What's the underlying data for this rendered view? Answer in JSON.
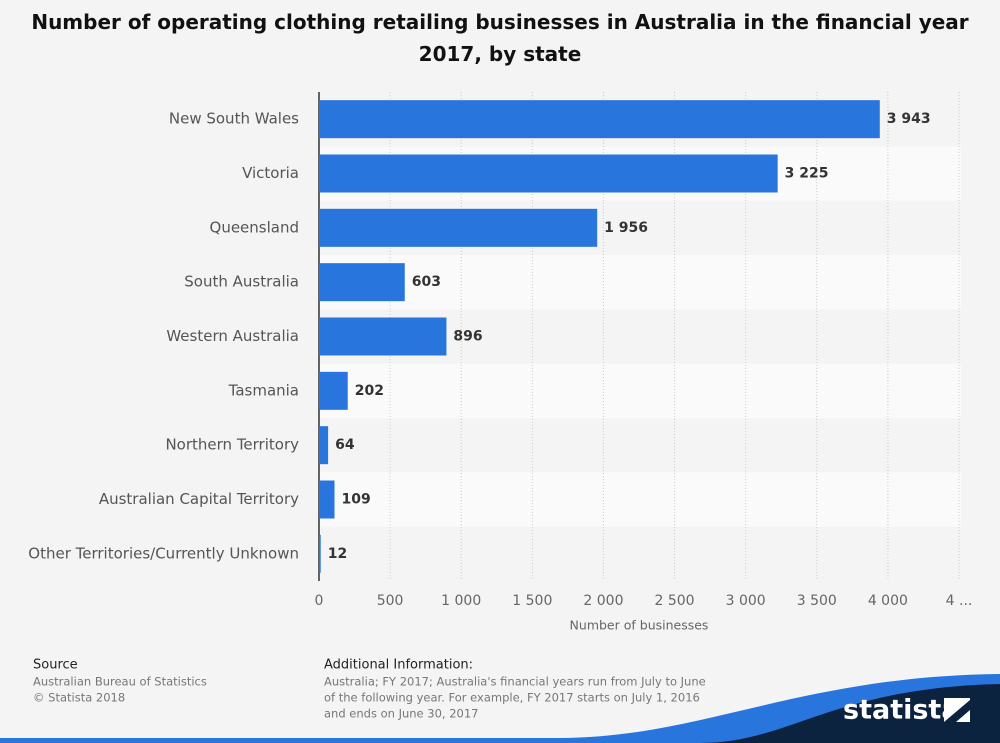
{
  "chart_data": {
    "type": "bar",
    "orientation": "horizontal",
    "title": "Number of operating clothing retailing businesses in Australia in the financial year 2017, by state",
    "categories": [
      "New South Wales",
      "Victoria",
      "Queensland",
      "South Australia",
      "Western Australia",
      "Tasmania",
      "Northern Territory",
      "Australian Capital Territory",
      "Other Territories/Currently Unknown"
    ],
    "values": [
      3943,
      3225,
      1956,
      603,
      896,
      202,
      64,
      109,
      12
    ],
    "value_labels": [
      "3 943",
      "3 225",
      "1 956",
      "603",
      "896",
      "202",
      "64",
      "109",
      "12"
    ],
    "color": "#2876dd",
    "xlabel": "Number of businesses",
    "xlim": [
      0,
      4500
    ],
    "xticks": [
      0,
      500,
      {
        "value": 1000,
        "label": "1 000"
      },
      {
        "value": 1500,
        "label": "1 500"
      },
      {
        "value": 2000,
        "label": "2 000"
      },
      {
        "value": 2500,
        "label": "2 500"
      },
      {
        "value": 3000,
        "label": "3 000"
      },
      {
        "value": 3500,
        "label": "3 500"
      },
      {
        "value": 4000,
        "label": "4 000"
      },
      {
        "value": 4500,
        "label": "4 ..."
      }
    ],
    "grid": true
  },
  "footer": {
    "source_title": "Source",
    "source_lines": [
      "Australian Bureau of Statistics",
      "© Statista 2018"
    ],
    "info_title": "Additional Information:",
    "info_lines": [
      "Australia; FY 2017; Australia's financial years run from July to June",
      "of the following year. For example, FY 2017 starts on July 1, 2016",
      "and ends on June 30, 2017"
    ],
    "logo": "statista"
  }
}
